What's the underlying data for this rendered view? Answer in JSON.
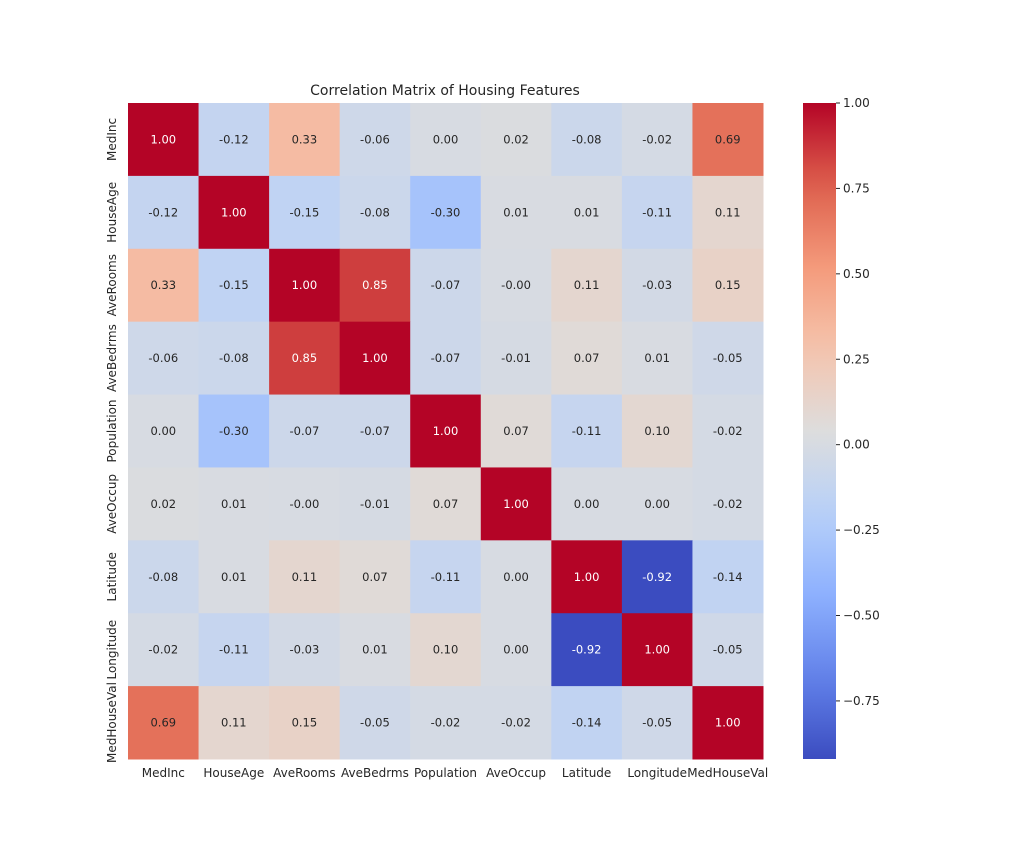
{
  "chart_data": {
    "type": "heatmap",
    "title": "Correlation Matrix of Housing Features",
    "xlabel": "",
    "ylabel": "",
    "categories": [
      "MedInc",
      "HouseAge",
      "AveRooms",
      "AveBedrms",
      "Population",
      "AveOccup",
      "Latitude",
      "Longitude",
      "MedHouseVal"
    ],
    "values": [
      [
        1.0,
        -0.12,
        0.33,
        -0.06,
        0.0,
        0.02,
        -0.08,
        -0.02,
        0.69
      ],
      [
        -0.12,
        1.0,
        -0.15,
        -0.08,
        -0.3,
        0.01,
        0.01,
        -0.11,
        0.11
      ],
      [
        0.33,
        -0.15,
        1.0,
        0.85,
        -0.07,
        -0.0,
        0.11,
        -0.03,
        0.15
      ],
      [
        -0.06,
        -0.08,
        0.85,
        1.0,
        -0.07,
        -0.01,
        0.07,
        0.01,
        -0.05
      ],
      [
        0.0,
        -0.3,
        -0.07,
        -0.07,
        1.0,
        0.07,
        -0.11,
        0.1,
        -0.02
      ],
      [
        0.02,
        0.01,
        -0.0,
        -0.01,
        0.07,
        1.0,
        0.0,
        0.0,
        -0.02
      ],
      [
        -0.08,
        0.01,
        0.11,
        0.07,
        -0.11,
        0.0,
        1.0,
        -0.92,
        -0.14
      ],
      [
        -0.02,
        -0.11,
        -0.03,
        0.01,
        0.1,
        0.0,
        -0.92,
        1.0,
        -0.05
      ],
      [
        0.69,
        0.11,
        0.15,
        -0.05,
        -0.02,
        -0.02,
        -0.14,
        -0.05,
        1.0
      ]
    ],
    "cell_labels": [
      [
        "1.00",
        "-0.12",
        "0.33",
        "-0.06",
        "0.00",
        "0.02",
        "-0.08",
        "-0.02",
        "0.69"
      ],
      [
        "-0.12",
        "1.00",
        "-0.15",
        "-0.08",
        "-0.30",
        "0.01",
        "0.01",
        "-0.11",
        "0.11"
      ],
      [
        "0.33",
        "-0.15",
        "1.00",
        "0.85",
        "-0.07",
        "-0.00",
        "0.11",
        "-0.03",
        "0.15"
      ],
      [
        "-0.06",
        "-0.08",
        "0.85",
        "1.00",
        "-0.07",
        "-0.01",
        "0.07",
        "0.01",
        "-0.05"
      ],
      [
        "0.00",
        "-0.30",
        "-0.07",
        "-0.07",
        "1.00",
        "0.07",
        "-0.11",
        "0.10",
        "-0.02"
      ],
      [
        "0.02",
        "0.01",
        "-0.00",
        "-0.01",
        "0.07",
        "1.00",
        "0.00",
        "0.00",
        "-0.02"
      ],
      [
        "-0.08",
        "0.01",
        "0.11",
        "0.07",
        "-0.11",
        "0.00",
        "1.00",
        "-0.92",
        "-0.14"
      ],
      [
        "-0.02",
        "-0.11",
        "-0.03",
        "0.01",
        "0.10",
        "0.00",
        "-0.92",
        "1.00",
        "-0.05"
      ],
      [
        "0.69",
        "0.11",
        "0.15",
        "-0.05",
        "-0.02",
        "-0.02",
        "-0.14",
        "-0.05",
        "1.00"
      ]
    ],
    "colorbar": {
      "min": -0.92,
      "max": 1.0,
      "ticks": [
        1.0,
        0.75,
        0.5,
        0.25,
        0.0,
        -0.25,
        -0.5,
        -0.75
      ],
      "tick_labels": [
        "1.00",
        "0.75",
        "0.50",
        "0.25",
        "0.00",
        "−0.25",
        "−0.50",
        "−0.75"
      ]
    },
    "colormap": "coolwarm",
    "grid": false,
    "legend": "colorbar-right"
  }
}
